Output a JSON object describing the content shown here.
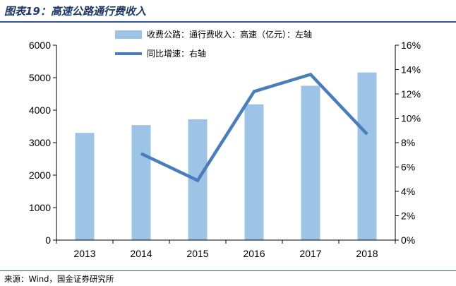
{
  "title": "图表19：高速公路通行费收入",
  "source": "来源：Wind，国金证券研究所",
  "colors": {
    "bar": "#9dc3e6",
    "line": "#4a7ebb",
    "border": "#2f5597"
  },
  "chart_data": {
    "type": "bar",
    "categories": [
      "2013",
      "2014",
      "2015",
      "2016",
      "2017",
      "2018"
    ],
    "series": [
      {
        "name": "收费公路：通行费收入：高速（亿元）：左轴",
        "type": "bar",
        "axis": "left",
        "values": [
          3300,
          3540,
          3720,
          4180,
          4750,
          5160
        ]
      },
      {
        "name": "同比增速：右轴",
        "type": "line",
        "axis": "right",
        "values": [
          null,
          0.071,
          0.049,
          0.122,
          0.136,
          0.087
        ]
      }
    ],
    "ylim": [
      0,
      6000
    ],
    "yticks": [
      "0",
      "1000",
      "2000",
      "3000",
      "4000",
      "5000",
      "6000"
    ],
    "y2lim": [
      0,
      0.16
    ],
    "y2ticks": [
      "0%",
      "2%",
      "4%",
      "6%",
      "8%",
      "10%",
      "12%",
      "14%",
      "16%"
    ],
    "legend_position": "top",
    "grid": false
  }
}
